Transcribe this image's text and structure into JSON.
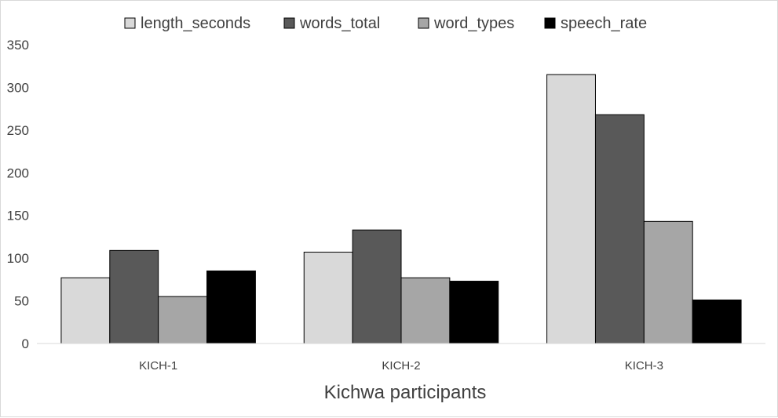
{
  "chart_data": {
    "type": "bar",
    "categories": [
      "KICH-1",
      "KICH-2",
      "KICH-3"
    ],
    "series": [
      {
        "name": "length_seconds",
        "values": [
          77,
          107,
          315
        ],
        "color": "#d9d9d9"
      },
      {
        "name": "words_total",
        "values": [
          109,
          133,
          268
        ],
        "color": "#595959"
      },
      {
        "name": "word_types",
        "values": [
          55,
          77,
          143
        ],
        "color": "#a6a6a6"
      },
      {
        "name": "speech_rate",
        "values": [
          85,
          73,
          51
        ],
        "color": "#000000"
      }
    ],
    "title": "",
    "xlabel": "Kichwa participants",
    "ylabel": "",
    "ylim": [
      0,
      350
    ],
    "yticks": [
      0,
      50,
      100,
      150,
      200,
      250,
      300,
      350
    ],
    "grid": false,
    "legend_position": "top"
  }
}
